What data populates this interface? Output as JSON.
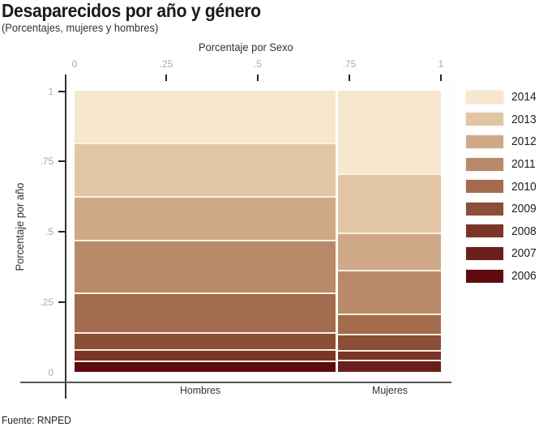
{
  "header": {
    "title": "Desaparecidos por año y género",
    "subtitle": "(Porcentajes, mujeres y hombres)"
  },
  "axes": {
    "x_title": "Porcentaje por Sexo",
    "y_title": "Porcentaje por año",
    "x_ticks": [
      "0",
      ".25",
      ".5",
      ".75",
      "1"
    ],
    "y_ticks": [
      "1",
      ".75",
      ".5",
      ".25",
      "0"
    ]
  },
  "categories": {
    "hombres": "Hombres",
    "mujeres": "Mujeres"
  },
  "legend": {
    "items": [
      {
        "label": "2014",
        "color": "#f6e7cd"
      },
      {
        "label": "2013",
        "color": "#e2c6a4"
      },
      {
        "label": "2012",
        "color": "#cfa987"
      },
      {
        "label": "2011",
        "color": "#b88a69"
      },
      {
        "label": "2010",
        "color": "#a46c4e"
      },
      {
        "label": "2009",
        "color": "#8b4e36"
      },
      {
        "label": "2008",
        "color": "#7a3526"
      },
      {
        "label": "2007",
        "color": "#6b1f1a"
      },
      {
        "label": "2006",
        "color": "#5e0a0e"
      }
    ]
  },
  "source": "Fuente: RNPED",
  "chart_data": {
    "type": "mosaic",
    "title": "Desaparecidos por año y género",
    "subtitle": "(Porcentajes, mujeres y hombres)",
    "xlabel": "Porcentaje por Sexo",
    "ylabel": "Porcentaje por año",
    "xlim": [
      0,
      1
    ],
    "ylim": [
      0,
      1
    ],
    "x_ticks": [
      0,
      0.25,
      0.5,
      0.75,
      1
    ],
    "y_ticks": [
      0,
      0.25,
      0.5,
      0.75,
      1
    ],
    "legend_position": "right",
    "categories": [
      "Hombres",
      "Mujeres"
    ],
    "category_widths": [
      0.715,
      0.285
    ],
    "series_order_bottom_to_top": [
      "2006",
      "2007",
      "2008",
      "2009",
      "2010",
      "2011",
      "2012",
      "2013",
      "2014"
    ],
    "series": [
      {
        "name": "2014",
        "values": [
          0.19,
          0.3
        ]
      },
      {
        "name": "2013",
        "values": [
          0.19,
          0.21
        ]
      },
      {
        "name": "2012",
        "values": [
          0.157,
          0.133
        ]
      },
      {
        "name": "2011",
        "values": [
          0.186,
          0.154
        ]
      },
      {
        "name": "2010",
        "values": [
          0.142,
          0.072
        ]
      },
      {
        "name": "2009",
        "values": [
          0.061,
          0.058
        ]
      },
      {
        "name": "2008",
        "values": [
          0.041,
          0.035
        ]
      },
      {
        "name": "2007",
        "values": [
          0.0,
          0.038
        ]
      },
      {
        "name": "2006",
        "values": [
          0.033,
          0.0
        ]
      }
    ],
    "source": "Fuente: RNPED"
  }
}
